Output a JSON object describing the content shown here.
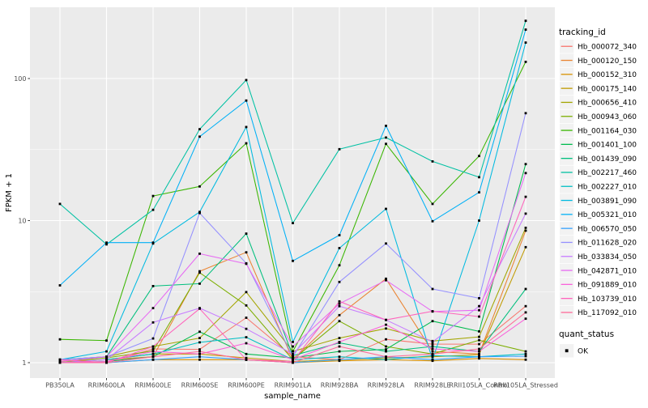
{
  "colors": {
    "background": "#FFFFFF",
    "panel_bg": "#EBEBEB",
    "grid": "#FFFFFF",
    "point": "#000000",
    "axis_text": "#4D4D4D",
    "title_text": "#000000",
    "tick_mark": "#333333",
    "legend_key_bg": "#F2F2F2"
  },
  "chart_data": {
    "type": "line",
    "title": "",
    "xlabel": "sample_name",
    "ylabel": "FPKM + 1",
    "y_scale": "log10",
    "y_ticks": [
      "1",
      "10",
      "100"
    ],
    "y_tick_values": [
      1,
      10,
      100
    ],
    "y_minor_values": [
      3.162,
      31.62
    ],
    "ylim": [
      0.78,
      315
    ],
    "grid": "white major and minor gridlines on grey panel",
    "legend_position": "right",
    "legend_title": "tracking_id",
    "legend2_title": "quant_status",
    "legend2_items": [
      "OK"
    ],
    "point_style": "small black square at every observation",
    "categories": [
      "PB350LA",
      "RRIM600LA",
      "RRIM600LE",
      "RRIM600SE",
      "RRIM600PE",
      "RRIM901LA",
      "RRIM928BA",
      "RRIM928LA",
      "RRIM928LE",
      "RRII105LA_Control",
      "RRII105LA_Stressed"
    ],
    "series": [
      {
        "name": "Hb_000072_340",
        "color": "#F8766D",
        "values": [
          1.05,
          1.0,
          1.25,
          1.24,
          2.07,
          1.1,
          1.05,
          1.46,
          1.35,
          1.35,
          2.5
        ]
      },
      {
        "name": "Hb_000120_150",
        "color": "#EA8331",
        "values": [
          1.0,
          1.05,
          1.1,
          4.4,
          5.98,
          1.05,
          2.16,
          3.9,
          1.2,
          1.15,
          8.5
        ]
      },
      {
        "name": "Hb_000152_310",
        "color": "#D89000",
        "values": [
          1.0,
          1.0,
          1.05,
          1.05,
          1.05,
          1.0,
          1.03,
          1.05,
          1.03,
          1.07,
          1.05
        ]
      },
      {
        "name": "Hb_000175_140",
        "color": "#C09B00",
        "values": [
          1.02,
          1.05,
          1.15,
          1.15,
          1.08,
          1.02,
          1.05,
          1.08,
          1.1,
          1.14,
          6.5
        ]
      },
      {
        "name": "Hb_000656_410",
        "color": "#A3A500",
        "values": [
          1.05,
          1.1,
          1.3,
          1.49,
          3.14,
          1.2,
          1.49,
          1.74,
          1.42,
          1.52,
          8.9
        ]
      },
      {
        "name": "Hb_000943_060",
        "color": "#7CAE00",
        "values": [
          1.02,
          1.08,
          1.21,
          4.3,
          2.53,
          1.05,
          1.96,
          1.3,
          1.15,
          1.44,
          1.2
        ]
      },
      {
        "name": "Hb_001164_030",
        "color": "#39B600",
        "values": [
          1.46,
          1.43,
          14.9,
          17.4,
          35.0,
          1.2,
          4.85,
          34.7,
          13.1,
          28.5,
          131
        ]
      },
      {
        "name": "Hb_001401_100",
        "color": "#00BB4E",
        "values": [
          1.0,
          1.02,
          1.1,
          1.65,
          1.15,
          1.08,
          1.2,
          1.24,
          1.96,
          1.66,
          25.0
        ]
      },
      {
        "name": "Hb_001439_090",
        "color": "#00BF7D",
        "values": [
          1.05,
          1.1,
          3.46,
          3.6,
          8.1,
          1.12,
          1.38,
          1.2,
          1.3,
          1.2,
          3.3
        ]
      },
      {
        "name": "Hb_002217_460",
        "color": "#00C1A3",
        "values": [
          13.1,
          6.8,
          11.9,
          44.0,
          97.5,
          9.6,
          31.8,
          38.4,
          26.1,
          20.2,
          255
        ]
      },
      {
        "name": "Hb_002227_010",
        "color": "#00BFC4",
        "values": [
          1.0,
          1.05,
          1.15,
          1.39,
          1.51,
          1.05,
          1.1,
          1.05,
          1.12,
          1.1,
          1.15
        ]
      },
      {
        "name": "Hb_003891_090",
        "color": "#00BAE0",
        "values": [
          1.05,
          1.2,
          6.9,
          11.5,
          45.6,
          1.4,
          6.4,
          12.1,
          1.05,
          10.0,
          179
        ]
      },
      {
        "name": "Hb_005321_010",
        "color": "#00B0F6",
        "values": [
          3.5,
          7.0,
          7.0,
          39.0,
          70.0,
          5.2,
          7.9,
          46.5,
          9.9,
          15.8,
          221
        ]
      },
      {
        "name": "Hb_006570_050",
        "color": "#35A2FF",
        "values": [
          1.0,
          1.0,
          1.05,
          1.1,
          1.05,
          1.0,
          1.05,
          1.1,
          1.05,
          1.1,
          1.11
        ]
      },
      {
        "name": "Hb_011628_020",
        "color": "#9590FF",
        "values": [
          1.05,
          1.1,
          1.48,
          11.3,
          5.0,
          1.1,
          3.7,
          6.9,
          3.3,
          2.84,
          57.0
        ]
      },
      {
        "name": "Hb_033834_050",
        "color": "#C77CFF",
        "values": [
          1.0,
          1.05,
          1.92,
          2.42,
          1.73,
          1.15,
          2.5,
          2.0,
          1.4,
          2.5,
          11.2
        ]
      },
      {
        "name": "Hb_042871_010",
        "color": "#E76BF3",
        "values": [
          1.02,
          1.1,
          2.42,
          5.85,
          4.96,
          1.3,
          2.6,
          3.8,
          2.29,
          2.34,
          21.6
        ]
      },
      {
        "name": "Hb_091889_010",
        "color": "#FA62DB",
        "values": [
          1.0,
          1.02,
          1.2,
          1.15,
          1.37,
          1.05,
          1.4,
          1.85,
          1.25,
          1.2,
          2.04
        ]
      },
      {
        "name": "Hb_103739_010",
        "color": "#FF62BC",
        "values": [
          1.05,
          1.0,
          1.3,
          2.4,
          1.05,
          1.02,
          2.7,
          2.0,
          2.3,
          2.11,
          14.7
        ]
      },
      {
        "name": "Hb_117092_010",
        "color": "#FF6A98",
        "values": [
          1.0,
          1.0,
          1.1,
          1.2,
          1.05,
          1.0,
          1.3,
          1.1,
          1.15,
          1.25,
          2.26
        ]
      }
    ]
  }
}
